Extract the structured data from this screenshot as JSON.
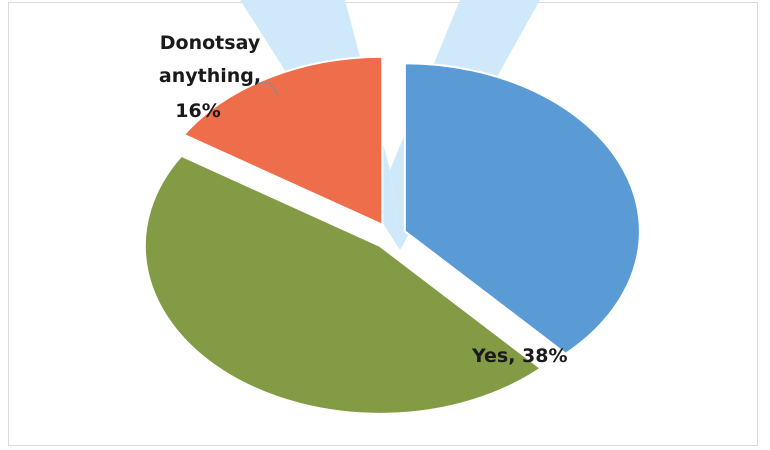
{
  "chart_data": {
    "type": "pie",
    "title": "",
    "slices": [
      {
        "label": "Yes",
        "value": 38,
        "color": "#5b9bd5",
        "data_label": "Yes, 38%"
      },
      {
        "label": "",
        "value": 46,
        "color": "#839b45",
        "data_label": ""
      },
      {
        "label": "Donotsay anything",
        "value": 16,
        "color": "#ee6d4a",
        "data_label_lines": [
          "Donotsay",
          "anything,",
          "16%"
        ]
      }
    ],
    "legend": "none",
    "exploded": true,
    "watermark_color": "#cfe9fb"
  }
}
